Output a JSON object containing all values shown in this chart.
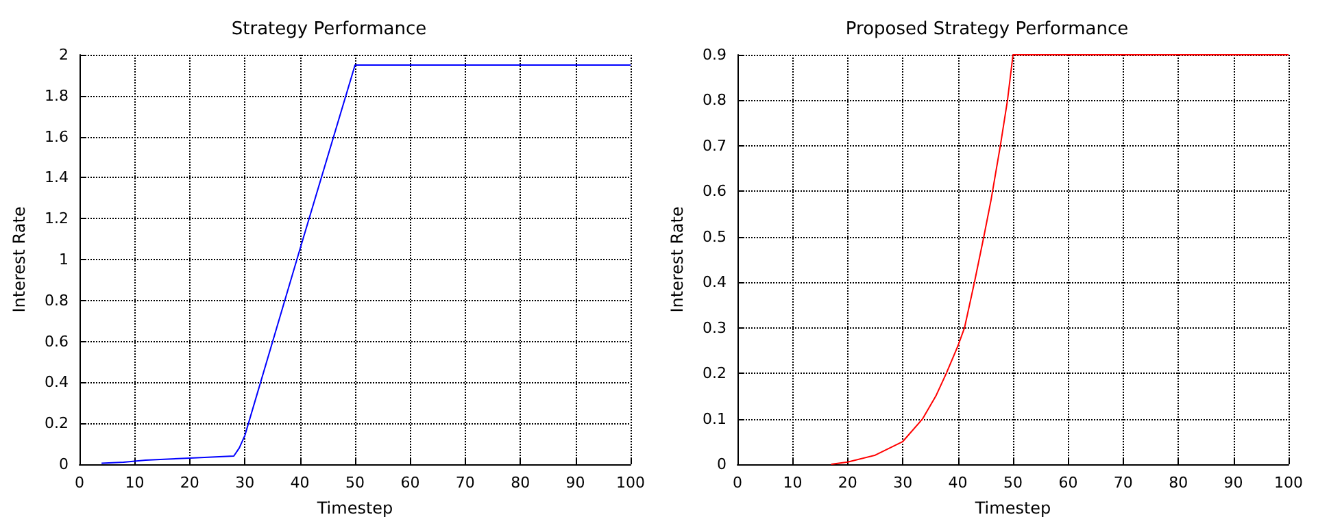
{
  "chart_data": [
    {
      "type": "line",
      "title": "Strategy Performance",
      "xlabel": "Timestep",
      "ylabel": "Interest Rate",
      "grid": true,
      "marker": "none",
      "line_style": "solid",
      "xlim": [
        0,
        100
      ],
      "xticks": [
        0,
        10,
        20,
        30,
        40,
        50,
        60,
        70,
        80,
        90,
        100
      ],
      "ylim": [
        0,
        2
      ],
      "yticks": [
        0,
        0.2,
        0.4,
        0.6,
        0.8,
        1,
        1.2,
        1.4,
        1.6,
        1.8,
        2
      ],
      "series": [
        {
          "color": "#0000ff",
          "x": [
            4,
            8,
            12,
            16,
            20,
            24,
            28,
            29,
            30,
            40,
            50,
            100
          ],
          "values": [
            0.005,
            0.01,
            0.02,
            0.025,
            0.03,
            0.035,
            0.04,
            0.08,
            0.14,
            1.05,
            1.95,
            1.95
          ]
        }
      ]
    },
    {
      "type": "line",
      "title": "Proposed Strategy Performance",
      "xlabel": "Timestep",
      "ylabel": "Interest Rate",
      "grid": true,
      "marker": "none",
      "line_style": "solid",
      "xlim": [
        0,
        100
      ],
      "xticks": [
        0,
        10,
        20,
        30,
        40,
        50,
        60,
        70,
        80,
        90,
        100
      ],
      "ylim": [
        0,
        0.9
      ],
      "yticks": [
        0,
        0.1,
        0.2,
        0.3,
        0.4,
        0.5,
        0.6,
        0.7,
        0.8,
        0.9
      ],
      "series": [
        {
          "color": "#ff0000",
          "x": [
            17,
            20,
            25,
            30,
            33.6,
            36,
            37.9,
            40,
            41.2,
            43,
            44.7,
            46,
            47.7,
            49,
            50,
            100
          ],
          "values": [
            0,
            0.005,
            0.02,
            0.05,
            0.1,
            0.15,
            0.2,
            0.26,
            0.3,
            0.4,
            0.5,
            0.58,
            0.7,
            0.8,
            0.9,
            0.9
          ]
        }
      ]
    }
  ]
}
